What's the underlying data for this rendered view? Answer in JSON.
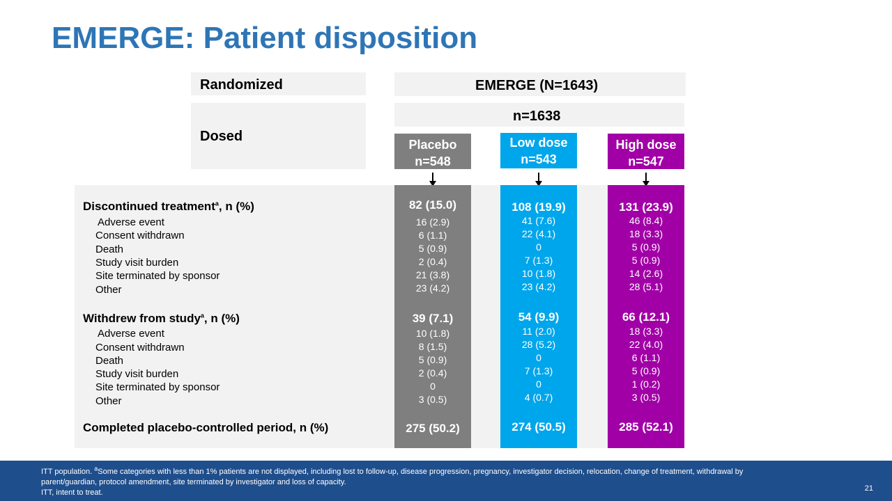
{
  "title": "EMERGE: Patient disposition",
  "randomized": {
    "label": "Randomized",
    "value": "EMERGE (N=1643)"
  },
  "dosed": {
    "label": "Dosed",
    "value": "n=1638"
  },
  "arms": [
    {
      "name": "Placebo",
      "n": "n=548",
      "color": "#7f7f7f"
    },
    {
      "name": "Low dose",
      "n": "n=543",
      "color": "#00a6eb"
    },
    {
      "name": "High dose",
      "n": "n=547",
      "color": "#a100a6"
    }
  ],
  "sections": {
    "discontinued": {
      "label": "Discontinued treatment",
      "sup": "a",
      "suffix": ", n (%)",
      "values": [
        "82 (15.0)",
        "108 (19.9)",
        "131 (23.9)"
      ],
      "rows": [
        {
          "label": "Adverse event",
          "values": [
            "16 (2.9)",
            "41 (7.6)",
            "46 (8.4)"
          ]
        },
        {
          "label": "Consent withdrawn",
          "values": [
            "6 (1.1)",
            "22 (4.1)",
            "18 (3.3)"
          ]
        },
        {
          "label": "Death",
          "values": [
            "5 (0.9)",
            "0",
            "5 (0.9)"
          ]
        },
        {
          "label": "Study visit burden",
          "values": [
            "2 (0.4)",
            "7 (1.3)",
            "5 (0.9)"
          ]
        },
        {
          "label": "Site terminated by sponsor",
          "values": [
            "21 (3.8)",
            "10 (1.8)",
            "14 (2.6)"
          ]
        },
        {
          "label": "Other",
          "values": [
            "23 (4.2)",
            "23 (4.2)",
            "28 (5.1)"
          ]
        }
      ]
    },
    "withdrew": {
      "label": "Withdrew from study",
      "sup": "a",
      "suffix": ", n (%)",
      "values": [
        "39 (7.1)",
        "54 (9.9)",
        "66 (12.1)"
      ],
      "rows": [
        {
          "label": "Adverse event",
          "values": [
            "10 (1.8)",
            "11 (2.0)",
            "18 (3.3)"
          ]
        },
        {
          "label": "Consent withdrawn",
          "values": [
            "8 (1.5)",
            "28 (5.2)",
            "22 (4.0)"
          ]
        },
        {
          "label": "Death",
          "values": [
            "5 (0.9)",
            "0",
            "6 (1.1)"
          ]
        },
        {
          "label": "Study visit burden",
          "values": [
            "2 (0.4)",
            "7 (1.3)",
            "5 (0.9)"
          ]
        },
        {
          "label": "Site terminated by sponsor",
          "values": [
            "0",
            "0",
            "1 (0.2)"
          ]
        },
        {
          "label": "Other",
          "values": [
            "3 (0.5)",
            "4 (0.7)",
            "3 (0.5)"
          ]
        }
      ]
    },
    "completed": {
      "label": "Completed placebo-controlled period, n (%)",
      "values": [
        "275 (50.2)",
        "274 (50.5)",
        "285 (52.1)"
      ]
    }
  },
  "footnote": {
    "line1_pre": "ITT population. ",
    "line1_sup": "a",
    "line1": "Some categories with less than 1% patients are not displayed, including lost to follow-up, disease progression, pregnancy, investigator decision, relocation, change of treatment, withdrawal by",
    "line2": "parent/guardian, protocol amendment, site terminated by investigator and loss of capacity.",
    "line3": "ITT, intent to treat."
  },
  "page_number": "21"
}
